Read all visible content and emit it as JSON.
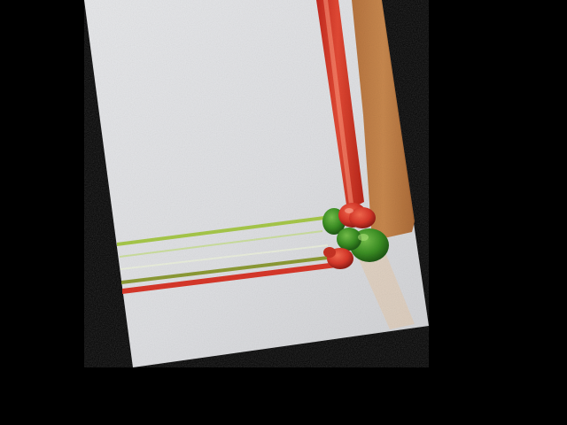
{
  "image": {
    "background_color": "#000000",
    "surface_color": "#d9dadc",
    "wood_color": "#c27a40",
    "red_pepper_color": "#d8382a",
    "green_pepper_color": "#3b8f24",
    "yellow_green_line_color": "#a7c84a",
    "objects": [
      "rotated-white-panel",
      "red-vertical-streak",
      "orange-wood-strip",
      "yellow-green-horizontal-lines",
      "red-horizontal-streak",
      "pepper-cluster"
    ]
  }
}
